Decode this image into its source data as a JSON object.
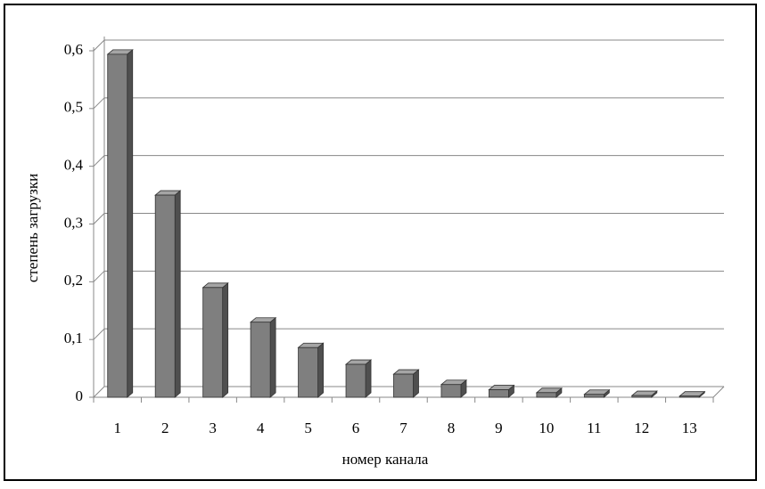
{
  "chart_data": {
    "type": "bar3d",
    "y_label": "степень загрузки",
    "x_label": "номер канала",
    "categories": [
      "1",
      "2",
      "3",
      "4",
      "5",
      "6",
      "7",
      "8",
      "9",
      "10",
      "11",
      "12",
      "13"
    ],
    "values": [
      0.594,
      0.35,
      0.19,
      0.13,
      0.086,
      0.057,
      0.04,
      0.022,
      0.013,
      0.008,
      0.005,
      0.003,
      0.002
    ],
    "color": "#7f7f7f",
    "ylim": [
      0,
      0.6
    ],
    "yticks": [
      0,
      {
        "value": 0.1,
        "label": "0,1"
      },
      {
        "value": 0.2,
        "label": "0,2"
      },
      {
        "value": 0.3,
        "label": "0,3"
      },
      {
        "value": 0.4,
        "label": "0,4"
      },
      {
        "value": 0.5,
        "label": "0,5"
      },
      {
        "value": 0.6,
        "label": "0,6"
      }
    ],
    "grid": true
  }
}
